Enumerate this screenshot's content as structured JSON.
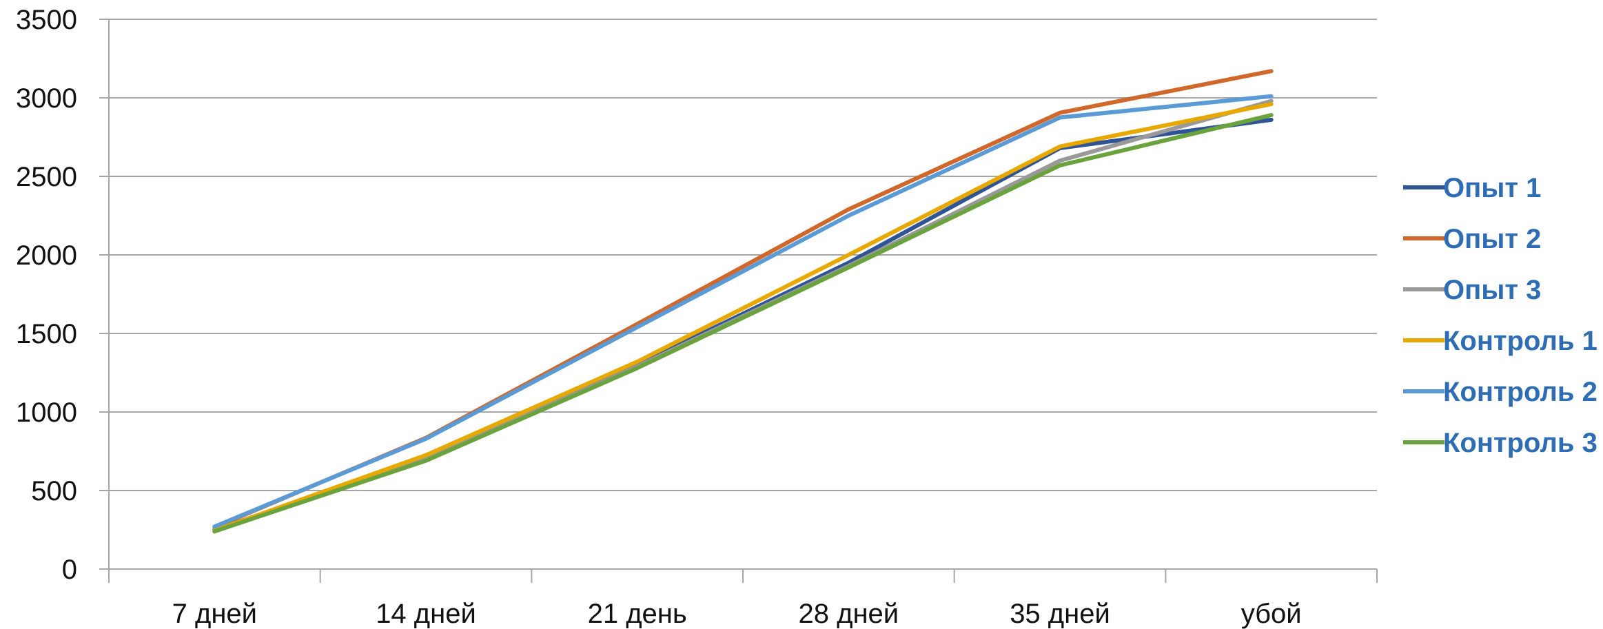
{
  "chart_data": {
    "type": "line",
    "title": "",
    "xlabel": "",
    "ylabel": "",
    "categories": [
      "7 дней",
      "14 дней",
      "21 день",
      "28 дней",
      "35 дней",
      "убой"
    ],
    "ylim": [
      0,
      3500
    ],
    "yticks": [
      0,
      500,
      1000,
      1500,
      2000,
      2500,
      3000,
      3500
    ],
    "grid": true,
    "legend_position": "right",
    "series": [
      {
        "name": "Опыт 1",
        "color": "#2f5597",
        "values": [
          250,
          700,
          1300,
          1950,
          2680,
          2860
        ]
      },
      {
        "name": "Опыт 2",
        "color": "#d0682c",
        "values": [
          265,
          835,
          1560,
          2290,
          2905,
          3170
        ]
      },
      {
        "name": "Опыт 3",
        "color": "#999999",
        "values": [
          240,
          700,
          1290,
          1930,
          2600,
          2980
        ]
      },
      {
        "name": "Контроль 1",
        "color": "#e7a800",
        "values": [
          245,
          725,
          1320,
          2000,
          2690,
          2960
        ]
      },
      {
        "name": "Контроль 2",
        "color": "#5b9bd5",
        "values": [
          270,
          830,
          1540,
          2250,
          2875,
          3010
        ]
      },
      {
        "name": "Контроль 3",
        "color": "#6aa33d",
        "values": [
          240,
          690,
          1280,
          1920,
          2570,
          2890
        ]
      }
    ]
  }
}
